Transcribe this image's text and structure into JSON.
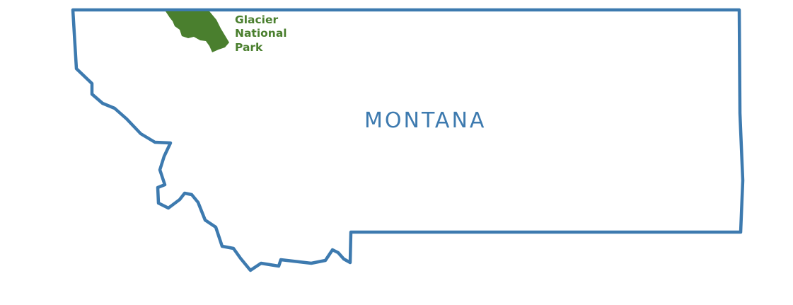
{
  "map": {
    "state": {
      "name": "MONTANA",
      "outline_color": "#3d7aaf",
      "fill_color": "#ffffff"
    },
    "park": {
      "label_lines": [
        "Glacier",
        "National",
        "Park"
      ],
      "fill_color": "#4a7f2e"
    }
  }
}
